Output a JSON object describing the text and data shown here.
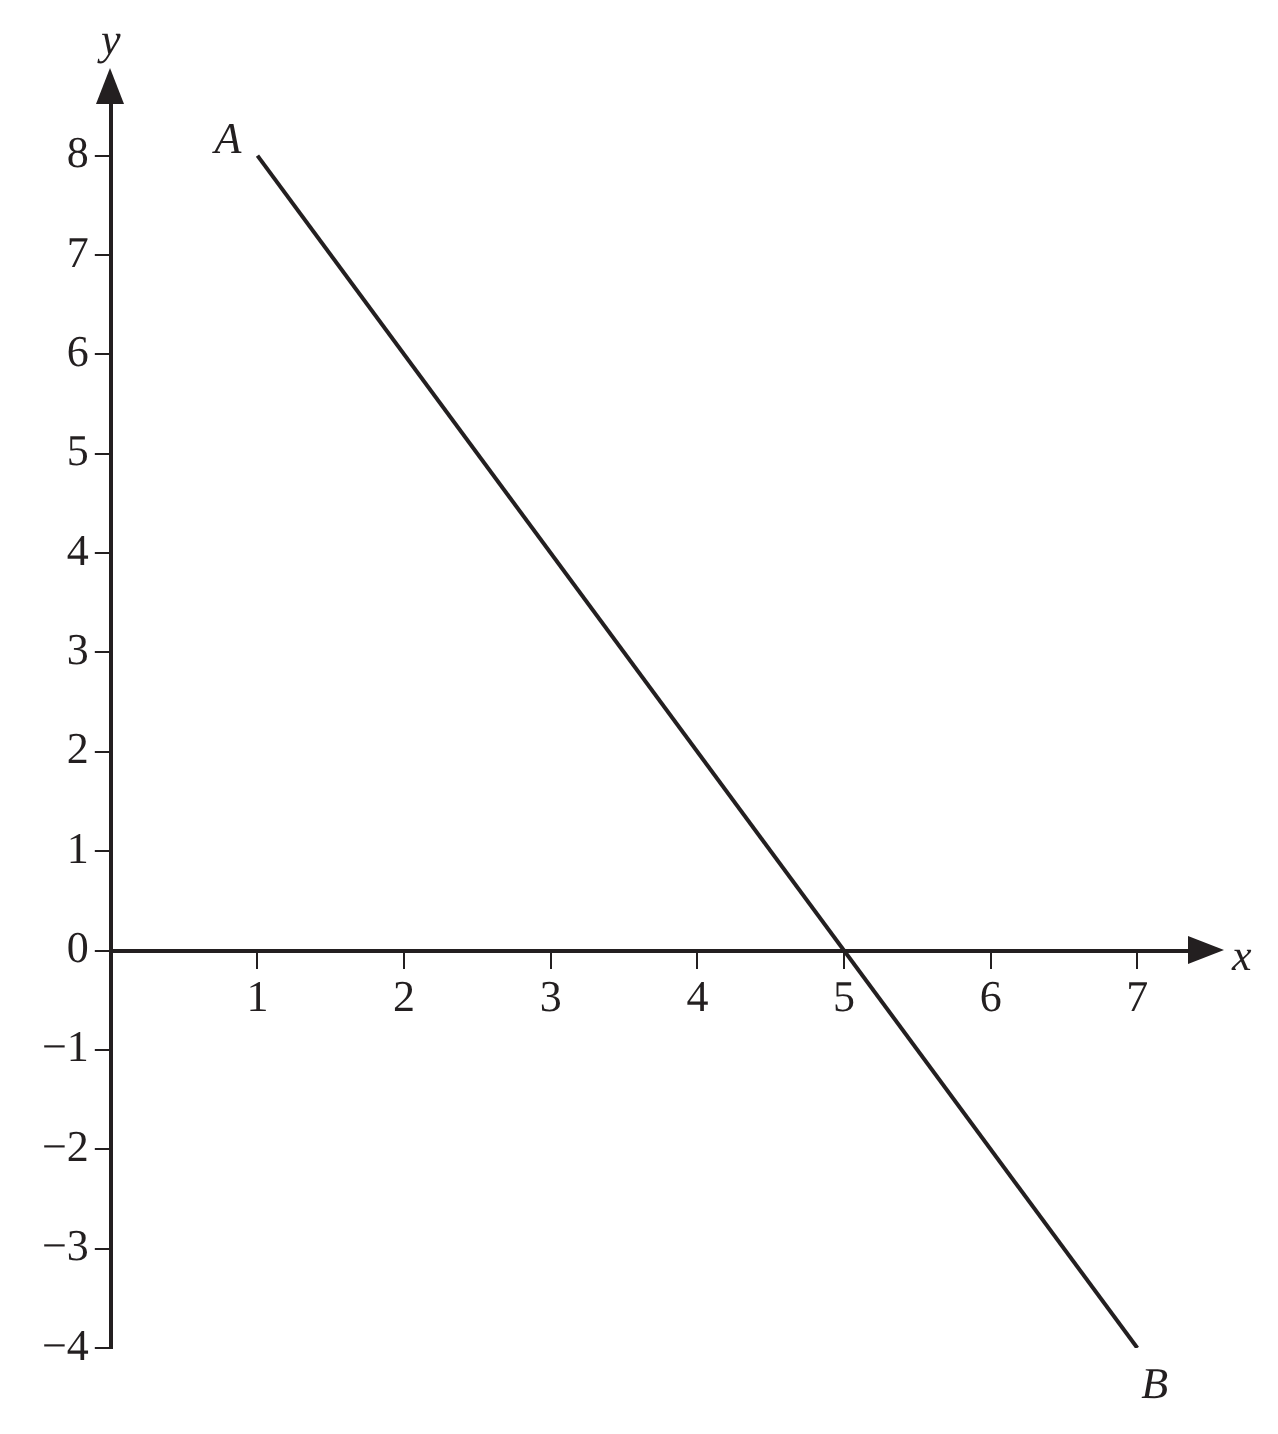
{
  "chart_data": {
    "type": "line",
    "xlabel": "x",
    "ylabel": "y",
    "x": [
      1,
      7
    ],
    "series": [
      {
        "color": "#231f20",
        "values": [
          8,
          -4
        ]
      }
    ],
    "xlim": [
      0,
      7.4
    ],
    "ylim": [
      -4,
      8.6
    ],
    "xticks": [
      1,
      2,
      3,
      4,
      5,
      6,
      7
    ],
    "yticks": [
      {
        "value": -4,
        "label": "−4"
      },
      {
        "value": -3,
        "label": "−3"
      },
      {
        "value": -2,
        "label": "−2"
      },
      {
        "value": -1,
        "label": "−1"
      },
      0,
      1,
      2,
      3,
      4,
      5,
      6,
      7,
      8
    ],
    "annotations": [
      {
        "text": "A",
        "x": 1,
        "y": 8
      },
      {
        "text": "B",
        "x": 7,
        "y": -4
      }
    ],
    "grid": false,
    "legend": false,
    "marker": "none",
    "line_style": "solid"
  }
}
